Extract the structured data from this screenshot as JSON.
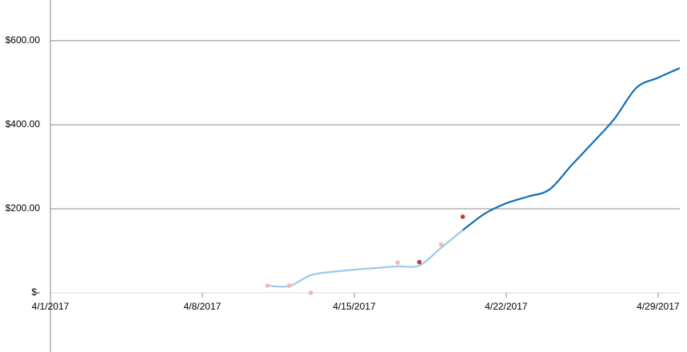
{
  "chart_data": {
    "type": "line",
    "xlim": [
      "4/1/2017",
      "4/30/2017"
    ],
    "xticks": [
      "4/1/2017",
      "4/8/2017",
      "4/15/2017",
      "4/22/2017",
      "4/29/2017"
    ],
    "ylim": [
      0,
      697
    ],
    "yticks": [
      {
        "value": 0,
        "label": "$-"
      },
      {
        "value": 200,
        "label": "$200.00"
      },
      {
        "value": 400,
        "label": "$400.00"
      },
      {
        "value": 600,
        "label": "$600.00"
      }
    ],
    "grid": true,
    "series": [
      {
        "color": "#9ccae8",
        "x": [
          "4/11/2017",
          "4/12/2017",
          "4/13/2017",
          "4/14/2017",
          "4/15/2017",
          "4/16/2017",
          "4/17/2017",
          "4/18/2017",
          "4/19/2017",
          "4/20/2017"
        ],
        "values": [
          17,
          16,
          42,
          50,
          55,
          59,
          63,
          65,
          107,
          149
        ]
      },
      {
        "color": "#0f6fba",
        "x": [
          "4/20/2017",
          "4/21/2017",
          "4/22/2017",
          "4/23/2017",
          "4/24/2017",
          "4/25/2017",
          "4/26/2017",
          "4/27/2017",
          "4/28/2017",
          "4/29/2017",
          "4/30/2017"
        ],
        "values": [
          149,
          188,
          213,
          229,
          246,
          303,
          358,
          415,
          488,
          512,
          535
        ]
      }
    ],
    "points": [
      {
        "color": "#f2b8b8",
        "x": [
          "4/11/2017",
          "4/12/2017",
          "4/13/2017",
          "4/17/2017",
          "4/19/2017"
        ],
        "values": [
          17,
          17,
          0,
          72,
          115
        ]
      },
      {
        "color": "#c0392b",
        "x": [
          "4/18/2017",
          "4/20/2017"
        ],
        "values": [
          73,
          181
        ]
      }
    ]
  }
}
